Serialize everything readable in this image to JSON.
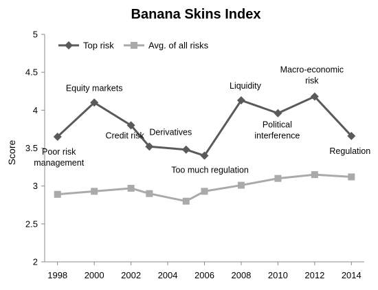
{
  "chart_data": {
    "type": "line",
    "title": "Banana Skins Index",
    "xlabel": "",
    "ylabel": "Score",
    "x_ticks": [
      "1998",
      "2000",
      "2002",
      "2004",
      "2006",
      "2008",
      "2010",
      "2012",
      "2014"
    ],
    "y_ticks": [
      "2",
      "2.5",
      "3",
      "3.5",
      "4",
      "4.5",
      "5"
    ],
    "xlim": [
      1997.3,
      2014.7
    ],
    "ylim": [
      2,
      5
    ],
    "grid": false,
    "legend_position": "top-left",
    "series": [
      {
        "name": "Top risk",
        "color": "#5a5a5a",
        "marker": "diamond",
        "x": [
          1998,
          2000,
          2002,
          2003,
          2005,
          2006,
          2008,
          2010,
          2012,
          2014
        ],
        "y": [
          3.65,
          4.1,
          3.8,
          3.52,
          3.48,
          3.4,
          4.13,
          3.96,
          4.18,
          3.66
        ]
      },
      {
        "name": "Avg. of all risks",
        "color": "#aaaaaa",
        "marker": "square",
        "x": [
          1998,
          2000,
          2002,
          2003,
          2005,
          2006,
          2008,
          2010,
          2012,
          2014
        ],
        "y": [
          2.89,
          2.93,
          2.97,
          2.9,
          2.8,
          2.93,
          3.01,
          3.1,
          3.15,
          3.12
        ]
      }
    ],
    "annotations": [
      {
        "lines": [
          "Poor risk",
          "management"
        ],
        "x": 1998,
        "y": 3.65
      },
      {
        "lines": [
          "Equity markets"
        ],
        "x": 2000,
        "y": 4.1
      },
      {
        "lines": [
          "Credit risk"
        ],
        "x": 2002,
        "y": 3.8
      },
      {
        "lines": [
          "Derivatives"
        ],
        "x": 2003,
        "y": 3.52
      },
      {
        "lines": [
          "Too much regulation"
        ],
        "x": 2006,
        "y": 3.4
      },
      {
        "lines": [
          "Liquidity"
        ],
        "x": 2008,
        "y": 4.13
      },
      {
        "lines": [
          "Political",
          "interference"
        ],
        "x": 2010,
        "y": 3.96
      },
      {
        "lines": [
          "Macro-economic",
          "risk"
        ],
        "x": 2012,
        "y": 4.18
      },
      {
        "lines": [
          "Regulation"
        ],
        "x": 2014,
        "y": 3.66
      }
    ]
  }
}
